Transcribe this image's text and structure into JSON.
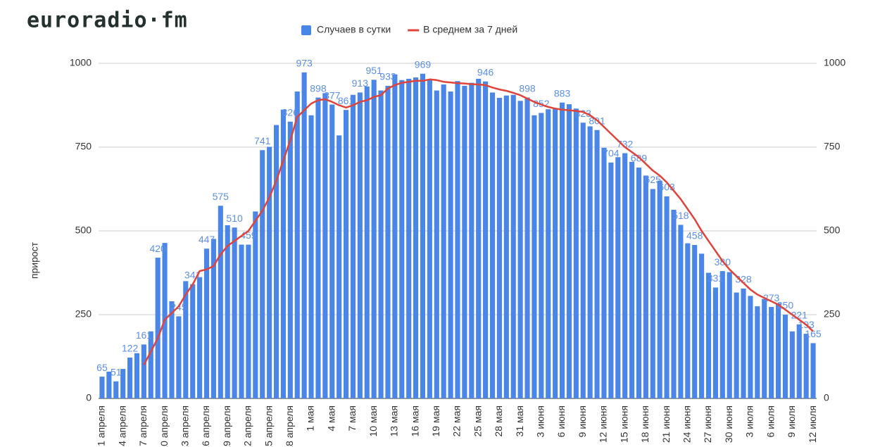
{
  "logo": "euroradio·fm",
  "chart_data": {
    "type": "bar",
    "legend_position": "top",
    "y_label": "прирост",
    "ylim": [
      0,
      1000
    ],
    "yticks": [
      0,
      250,
      500,
      750,
      1000
    ],
    "y2lim": [
      0,
      1000
    ],
    "y2ticks": [
      0,
      250,
      500,
      750,
      1000
    ],
    "grid": true,
    "categories": [
      "1 апреля",
      null,
      null,
      "4 апреля",
      null,
      null,
      "7 апреля",
      null,
      null,
      "10 апреля",
      null,
      null,
      "13 апреля",
      null,
      null,
      "16 апреля",
      null,
      null,
      "19 апреля",
      null,
      null,
      "22 апреля",
      null,
      null,
      "25 апреля",
      null,
      null,
      "28 апреля",
      null,
      null,
      "1 мая",
      null,
      null,
      "4 мая",
      null,
      null,
      "7 мая",
      null,
      null,
      "10 мая",
      null,
      null,
      "13 мая",
      null,
      null,
      "16 мая",
      null,
      null,
      "19 мая",
      null,
      null,
      "22 мая",
      null,
      null,
      "25 мая",
      null,
      null,
      "28 мая",
      null,
      null,
      "31 мая",
      null,
      null,
      "3 июня",
      null,
      null,
      "6 июня",
      null,
      null,
      "9 июня",
      null,
      null,
      "12 июня",
      null,
      null,
      "15 июня",
      null,
      null,
      "18 июня",
      null,
      null,
      "21 июня",
      null,
      null,
      "24 июня",
      null,
      null,
      "27 июня",
      null,
      null,
      "30 июня",
      null,
      null,
      "3 июля",
      null,
      null,
      "6 июля",
      null,
      null,
      "9 июля",
      null,
      null,
      "12 июля"
    ],
    "series": [
      {
        "name": "Случаев в сутки",
        "type": "bar",
        "color": "#4a86e8",
        "values": [
          65,
          80,
          51,
          88,
          122,
          135,
          161,
          200,
          420,
          464,
          290,
          245,
          350,
          341,
          362,
          447,
          476,
          575,
          517,
          510,
          459,
          459,
          558,
          741,
          751,
          816,
          862,
          826,
          916,
          973,
          845,
          898,
          911,
          877,
          785,
          861,
          906,
          913,
          931,
          951,
          919,
          933,
          967,
          950,
          954,
          958,
          969,
          950,
          919,
          937,
          916,
          947,
          933,
          942,
          954,
          946,
          913,
          897,
          904,
          906,
          888,
          898,
          845,
          852,
          863,
          865,
          883,
          878,
          865,
          823,
          812,
          801,
          748,
          704,
          720,
          732,
          706,
          689,
          665,
          625,
          650,
          603,
          563,
          518,
          463,
          458,
          432,
          375,
          331,
          380,
          377,
          316,
          328,
          306,
          275,
          297,
          273,
          284,
          250,
          200,
          221,
          193,
          165
        ],
        "value_labels": [
          "65",
          null,
          "51",
          null,
          "122",
          null,
          "161",
          null,
          "420",
          null,
          null,
          "245",
          null,
          "341",
          null,
          "447",
          null,
          "575",
          null,
          "510",
          null,
          "459",
          null,
          "741",
          null,
          null,
          null,
          "826",
          null,
          "973",
          null,
          "898",
          null,
          "877",
          null,
          "861",
          null,
          "913",
          null,
          "951",
          null,
          "933",
          null,
          null,
          null,
          null,
          "969",
          null,
          null,
          null,
          null,
          null,
          null,
          null,
          null,
          "946",
          null,
          null,
          null,
          null,
          null,
          "898",
          null,
          "852",
          null,
          null,
          "883",
          null,
          null,
          "823",
          null,
          "801",
          null,
          "704",
          null,
          "732",
          null,
          "689",
          null,
          "625",
          null,
          "603",
          null,
          "518",
          null,
          "458",
          null,
          null,
          "331",
          "380",
          null,
          null,
          "328",
          null,
          null,
          null,
          "273",
          null,
          "250",
          null,
          "221",
          "193",
          "165"
        ]
      },
      {
        "name": "В среднем за 7 дней",
        "type": "line",
        "color": "#e0433a",
        "values": [
          null,
          null,
          null,
          null,
          null,
          null,
          100,
          140,
          180,
          235,
          255,
          275,
          310,
          340,
          380,
          385,
          395,
          430,
          455,
          470,
          485,
          500,
          530,
          560,
          600,
          650,
          710,
          770,
          840,
          860,
          880,
          890,
          893,
          885,
          875,
          868,
          875,
          885,
          890,
          900,
          905,
          925,
          935,
          942,
          945,
          948,
          948,
          952,
          950,
          945,
          943,
          941,
          940,
          938,
          937,
          935,
          928,
          922,
          918,
          912,
          905,
          895,
          885,
          877,
          870,
          865,
          862,
          860,
          858,
          855,
          845,
          830,
          810,
          790,
          770,
          750,
          735,
          720,
          700,
          680,
          665,
          645,
          620,
          595,
          565,
          535,
          500,
          470,
          440,
          410,
          385,
          365,
          345,
          325,
          310,
          300,
          290,
          280,
          265,
          250,
          235,
          220,
          200
        ]
      }
    ]
  }
}
